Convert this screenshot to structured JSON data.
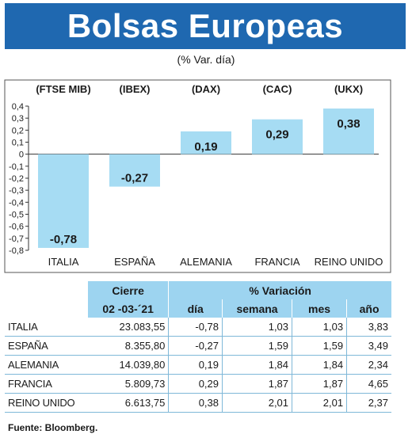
{
  "title": "Bolsas Europeas",
  "subtitle": "(% Var. día)",
  "chart_data": {
    "type": "bar",
    "categories": [
      "ITALIA",
      "ESPAÑA",
      "ALEMANIA",
      "FRANCIA",
      "REINO UNIDO"
    ],
    "indices": [
      "(FTSE MIB)",
      "(IBEX)",
      "(DAX)",
      "(CAC)",
      "(UKX)"
    ],
    "values": [
      -0.78,
      -0.27,
      0.19,
      0.29,
      0.38
    ],
    "value_labels": [
      "-0,78",
      "-0,27",
      "0,19",
      "0,29",
      "0,38"
    ],
    "ylim": [
      -0.8,
      0.4
    ],
    "yticks": [
      "0,4",
      "0,3",
      "0,2",
      "0,1",
      "0",
      "-0,1",
      "-0,2",
      "-0,3",
      "-0,4",
      "-0,5",
      "-0,6",
      "-0,7",
      "-0,8"
    ],
    "bar_color": "#a6dcf3",
    "grid": false
  },
  "table": {
    "header_top": {
      "cierre": "Cierre",
      "variacion": "% Variación"
    },
    "header_sub": {
      "fecha": "02 -03-´21",
      "dia": "día",
      "semana": "semana",
      "mes": "mes",
      "ano": "año"
    },
    "rows": [
      {
        "name": "ITALIA",
        "cierre": "23.083,55",
        "dia": "-0,78",
        "semana": "1,03",
        "mes": "1,03",
        "ano": "3,83"
      },
      {
        "name": "ESPAÑA",
        "cierre": "8.355,80",
        "dia": "-0,27",
        "semana": "1,59",
        "mes": "1,59",
        "ano": "3,49"
      },
      {
        "name": "ALEMANIA",
        "cierre": "14.039,80",
        "dia": "0,19",
        "semana": "1,84",
        "mes": "1,84",
        "ano": "2,34"
      },
      {
        "name": "FRANCIA",
        "cierre": "5.809,73",
        "dia": "0,29",
        "semana": "1,87",
        "mes": "1,87",
        "ano": "4,65"
      },
      {
        "name": "REINO UNIDO",
        "cierre": "6.613,75",
        "dia": "0,38",
        "semana": "2,01",
        "mes": "2,01",
        "ano": "2,37"
      }
    ]
  },
  "source": "Fuente: Bloomberg."
}
